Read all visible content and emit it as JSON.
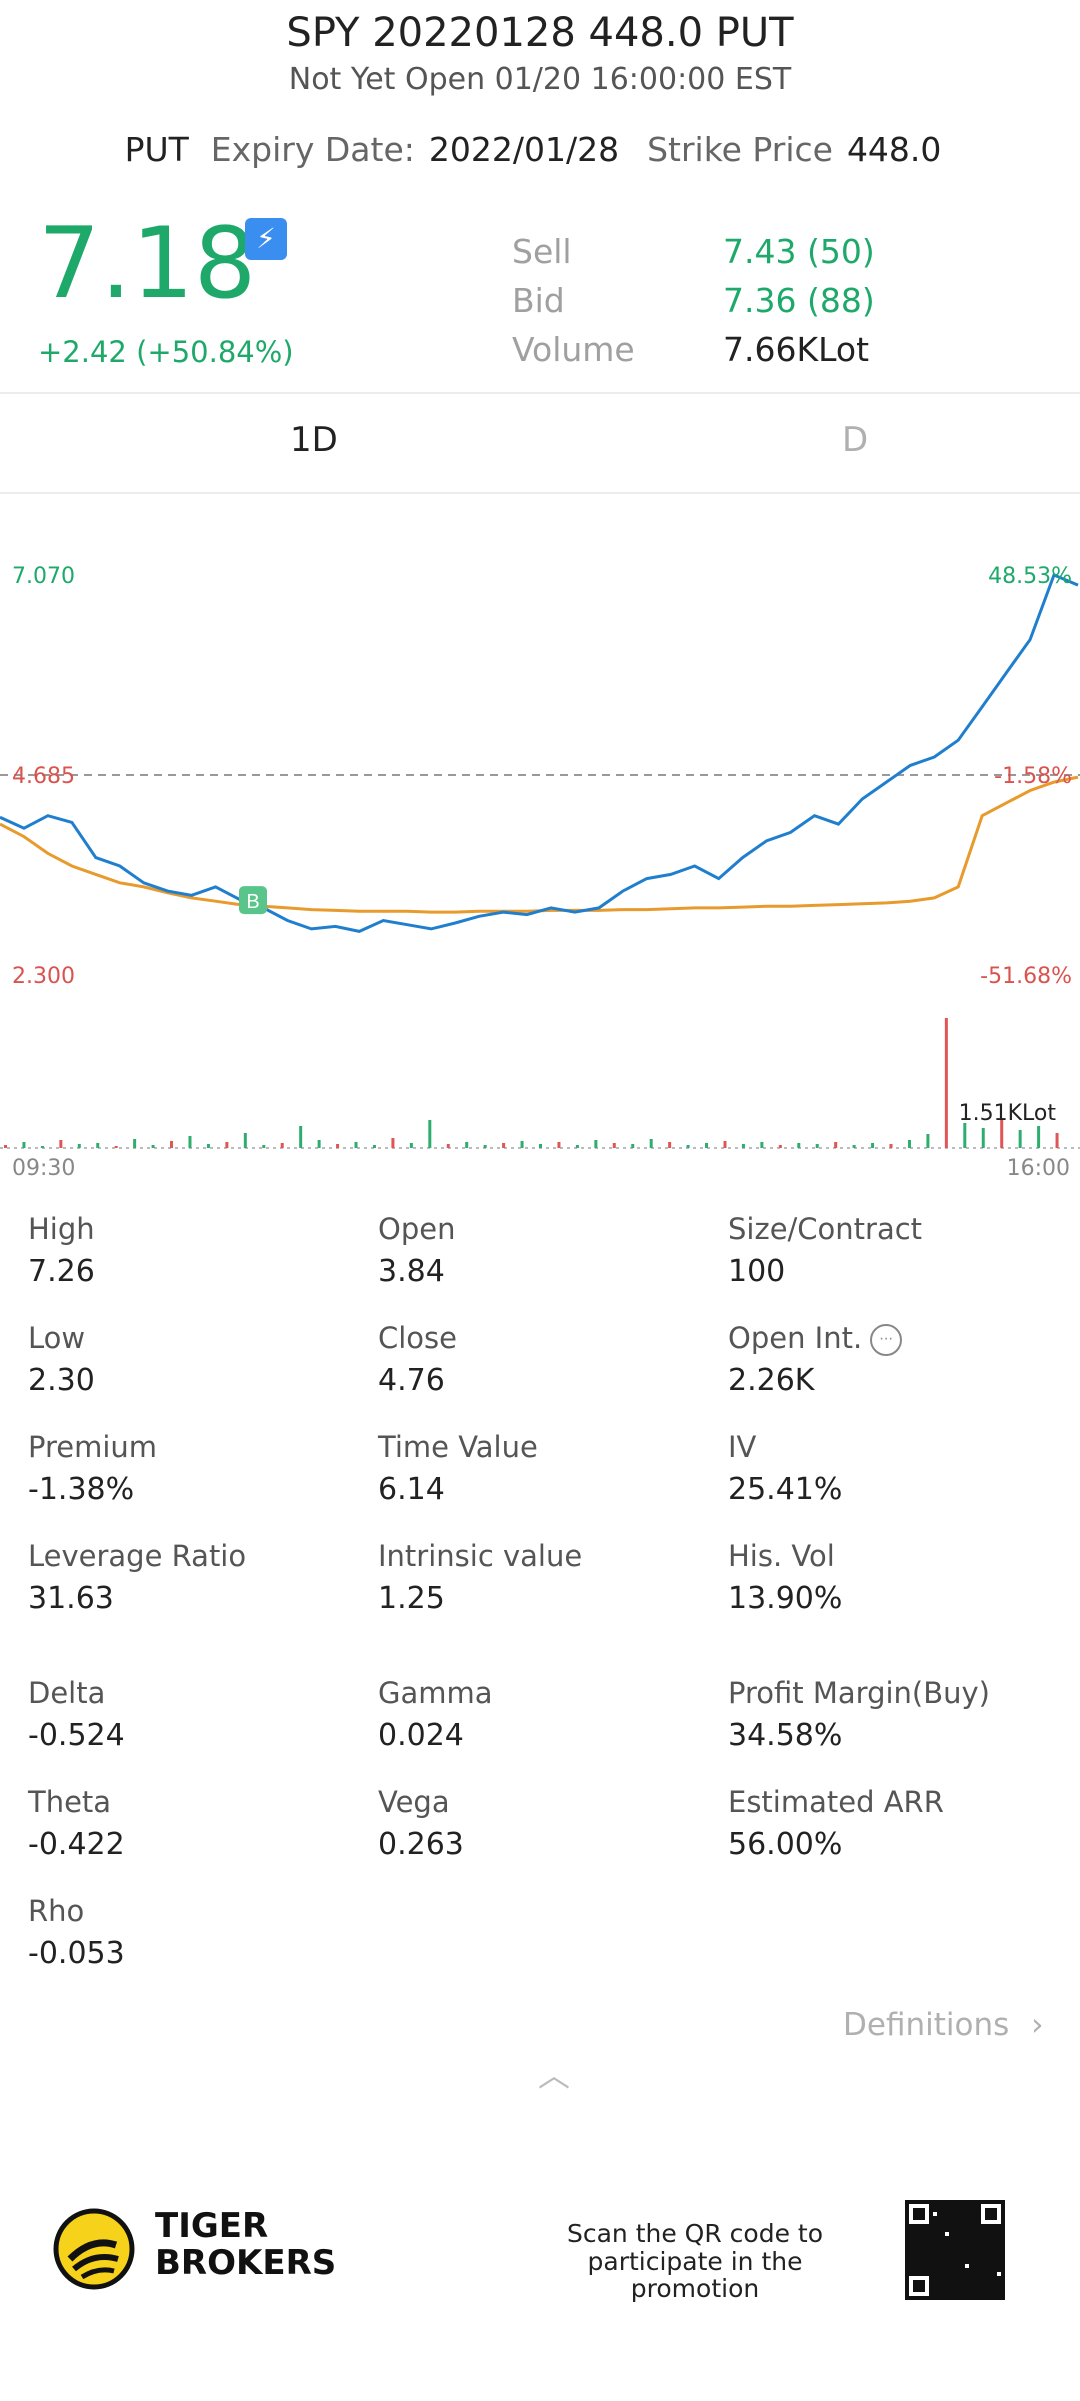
{
  "header": {
    "title": "SPY 20220128 448.0 PUT",
    "status": "Not Yet Open 01/20 16:00:00 EST",
    "type": "PUT",
    "expiry_label": "Expiry Date:",
    "expiry_value": "2022/01/28",
    "strike_label": "Strike Price",
    "strike_value": "448.0"
  },
  "quote": {
    "price": "7.18",
    "change": "+2.42 (+50.84%)",
    "flash_badge": "⚡",
    "sell_label": "Sell",
    "sell_value": "7.43 (50)",
    "bid_label": "Bid",
    "bid_value": "7.36 (88)",
    "volume_label": "Volume",
    "volume_value": "7.66KLot"
  },
  "tabs": {
    "tab1": "1D",
    "tab2": "D"
  },
  "chart_data": {
    "type": "line",
    "y_labels_left": [
      "7.070",
      "4.685",
      "2.300"
    ],
    "y_labels_right": [
      "48.53%",
      "-1.58%",
      "-51.68%"
    ],
    "x_labels": [
      "09:30",
      "16:00"
    ],
    "volume_label": "1.51KLot",
    "ylim": [
      2.3,
      7.07
    ],
    "reference_line": 4.685,
    "colors": {
      "price": "#1f7fce",
      "avg": "#e89a2c",
      "up": "#2eae6e",
      "down": "#e05555"
    },
    "series": [
      {
        "values": [
          4.18,
          4.05,
          4.2,
          4.12,
          3.7,
          3.6,
          3.4,
          3.3,
          3.25,
          3.35,
          3.2,
          3.1,
          2.95,
          2.85,
          2.88,
          2.82,
          2.95,
          2.9,
          2.85,
          2.92,
          3.0,
          3.05,
          3.02,
          3.1,
          3.05,
          3.1,
          3.3,
          3.45,
          3.5,
          3.6,
          3.45,
          3.7,
          3.9,
          4.0,
          4.2,
          4.1,
          4.4,
          4.6,
          4.8,
          4.9,
          5.1,
          5.5,
          5.9,
          6.3,
          7.07,
          6.95
        ]
      },
      {
        "values": [
          4.1,
          3.95,
          3.75,
          3.6,
          3.5,
          3.4,
          3.35,
          3.28,
          3.22,
          3.18,
          3.14,
          3.12,
          3.1,
          3.08,
          3.07,
          3.06,
          3.06,
          3.06,
          3.05,
          3.05,
          3.06,
          3.06,
          3.06,
          3.07,
          3.07,
          3.07,
          3.08,
          3.08,
          3.09,
          3.1,
          3.1,
          3.11,
          3.12,
          3.12,
          3.13,
          3.14,
          3.15,
          3.16,
          3.18,
          3.22,
          3.35,
          4.2,
          4.35,
          4.5,
          4.6,
          4.66
        ]
      }
    ]
  },
  "stats": [
    {
      "label": "High",
      "value": "7.26"
    },
    {
      "label": "Open",
      "value": "3.84"
    },
    {
      "label": "Size/Contract",
      "value": "100"
    },
    {
      "label": "Low",
      "value": "2.30"
    },
    {
      "label": "Close",
      "value": "4.76"
    },
    {
      "label": "Open Int.",
      "value": "2.26K"
    },
    {
      "label": "Premium",
      "value": "-1.38%"
    },
    {
      "label": "Time Value",
      "value": "6.14"
    },
    {
      "label": "IV",
      "value": "25.41%"
    },
    {
      "label": "Leverage Ratio",
      "value": "31.63"
    },
    {
      "label": "Intrinsic value",
      "value": "1.25"
    },
    {
      "label": "His. Vol",
      "value": "13.90%"
    },
    {
      "label": "Delta",
      "value": "-0.524"
    },
    {
      "label": "Gamma",
      "value": "0.024"
    },
    {
      "label": "Profit Margin(Buy)",
      "value": "34.58%"
    },
    {
      "label": "Theta",
      "value": "-0.422"
    },
    {
      "label": "Vega",
      "value": "0.263"
    },
    {
      "label": "Estimated ARR",
      "value": "56.00%"
    },
    {
      "label": "Rho",
      "value": "-0.053"
    }
  ],
  "footer": {
    "definitions": "Definitions",
    "brand_line1": "TIGER",
    "brand_line2": "BROKERS",
    "scan_line1": "Scan the QR code to",
    "scan_line2": "participate in the promotion"
  }
}
